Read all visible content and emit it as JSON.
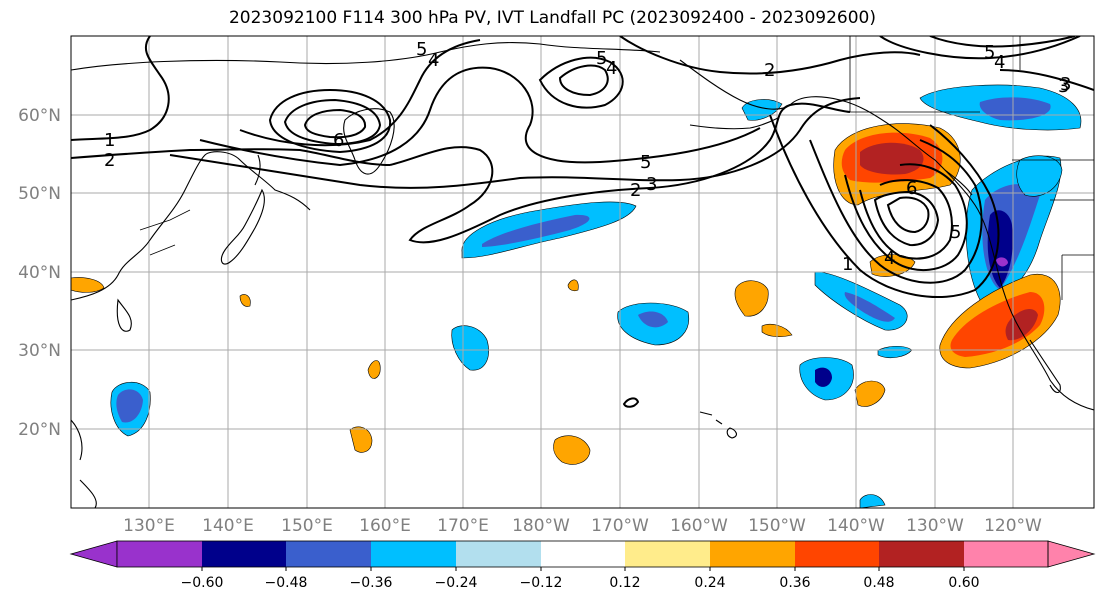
{
  "title": "2023092100 F114 300 hPa PV, IVT Landfall PC (2023092400 - 2023092600)",
  "lon_labels": [
    "130°E",
    "140°E",
    "150°E",
    "160°E",
    "170°E",
    "180°W",
    "170°W",
    "160°W",
    "150°W",
    "140°W",
    "130°W",
    "120°W"
  ],
  "lat_labels": [
    "60°N",
    "50°N",
    "40°N",
    "30°N",
    "20°N"
  ],
  "colorbar": {
    "ticks": [
      "−0.60",
      "−0.48",
      "−0.36",
      "−0.24",
      "−0.12",
      "0.12",
      "0.24",
      "0.36",
      "0.48",
      "0.60"
    ],
    "colors": [
      "#9932cc",
      "#00008b",
      "#3a5fcd",
      "#00bfff",
      "#b2dfee",
      "#ffffff",
      "#ffec8b",
      "#ffa500",
      "#ff4500",
      "#b22222",
      "#ff82ab"
    ]
  },
  "contour_labels": [
    "5",
    "4",
    "1",
    "2",
    "6",
    "5",
    "4",
    "5",
    "2",
    "3",
    "2",
    "6",
    "5",
    "1",
    "4",
    "3",
    "5",
    "4",
    "3"
  ],
  "colors": {
    "land_outline": "#000000",
    "grid": "#aaaaaa",
    "axis_text": "#808080"
  }
}
